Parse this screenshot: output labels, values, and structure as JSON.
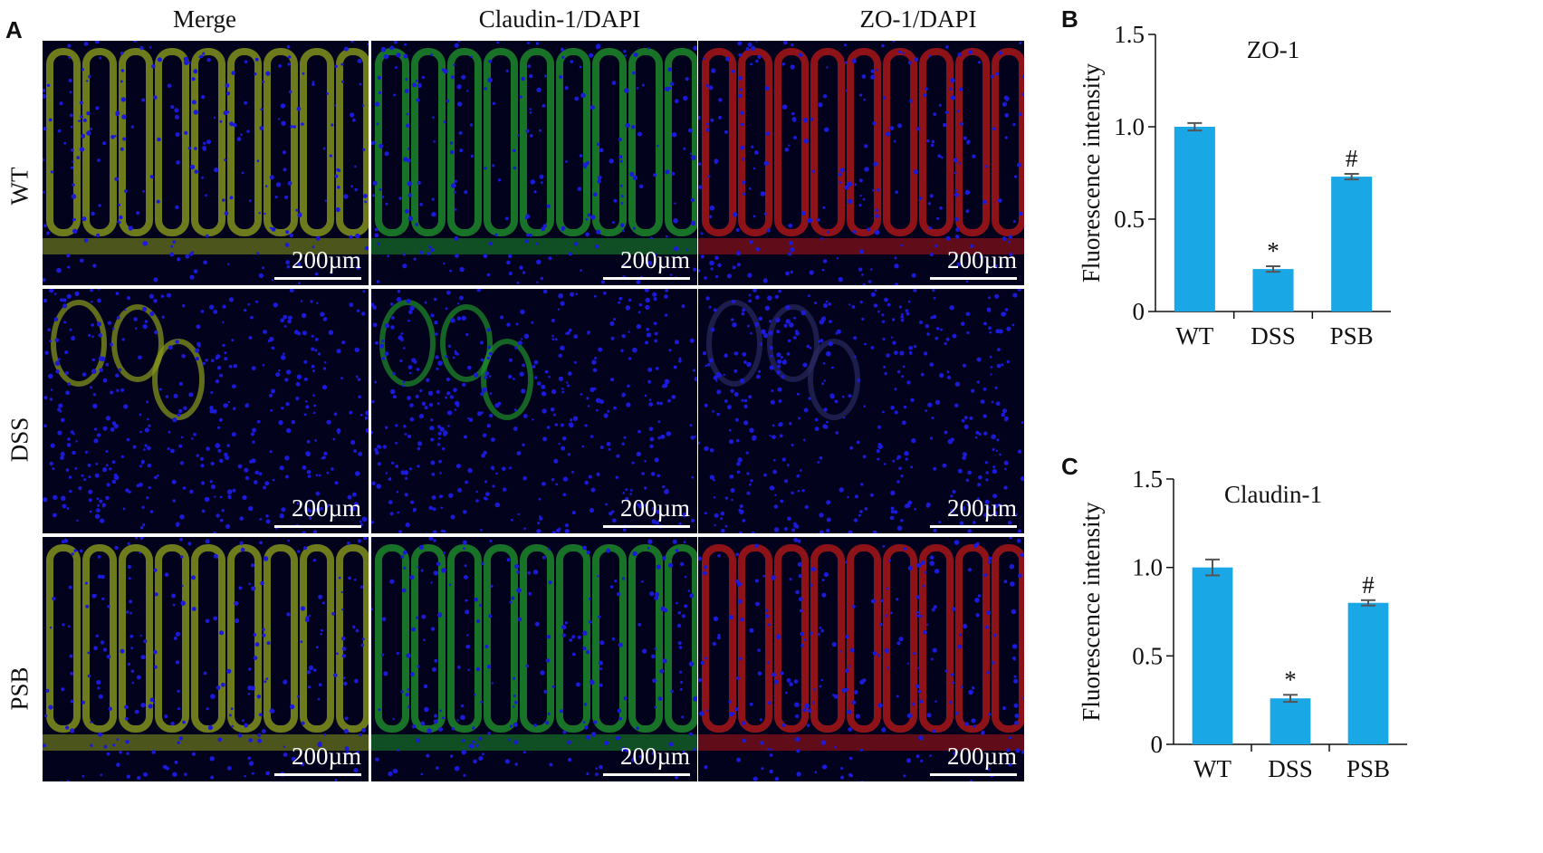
{
  "panel_labels": {
    "a": "A",
    "b": "B",
    "c": "C"
  },
  "columns": [
    "Merge",
    "Claudin-1/DAPI",
    "ZO-1/DAPI"
  ],
  "rows": [
    "WT",
    "DSS",
    "PSB"
  ],
  "scale_bar_label": "200µm",
  "colors": {
    "bar": "#1aa7e6",
    "merge_tissue": "#8a9a1e",
    "claudin_tissue": "#1e8f2a",
    "zo1_tissue": "#b01818",
    "dapi": "#1a1ad8",
    "background": "#02021c"
  },
  "chart_data": [
    {
      "type": "bar",
      "title": "ZO-1",
      "ylabel": "Fluorescence intensity",
      "categories": [
        "WT",
        "DSS",
        "PSB"
      ],
      "values": [
        1.0,
        0.23,
        0.73
      ],
      "errors": [
        0.02,
        0.015,
        0.015
      ],
      "annotations": [
        "",
        "*",
        "#"
      ],
      "ylim": [
        0,
        1.5
      ],
      "yticks": [
        "0",
        "0.5",
        "1.0",
        "1.5"
      ]
    },
    {
      "type": "bar",
      "title": "Claudin-1",
      "ylabel": "Fluorescence intensity",
      "categories": [
        "WT",
        "DSS",
        "PSB"
      ],
      "values": [
        1.0,
        0.26,
        0.8
      ],
      "errors": [
        0.045,
        0.02,
        0.015
      ],
      "annotations": [
        "",
        "*",
        "#"
      ],
      "ylim": [
        0,
        1.5
      ],
      "yticks": [
        "0",
        "0.5",
        "1.0",
        "1.5"
      ]
    }
  ]
}
